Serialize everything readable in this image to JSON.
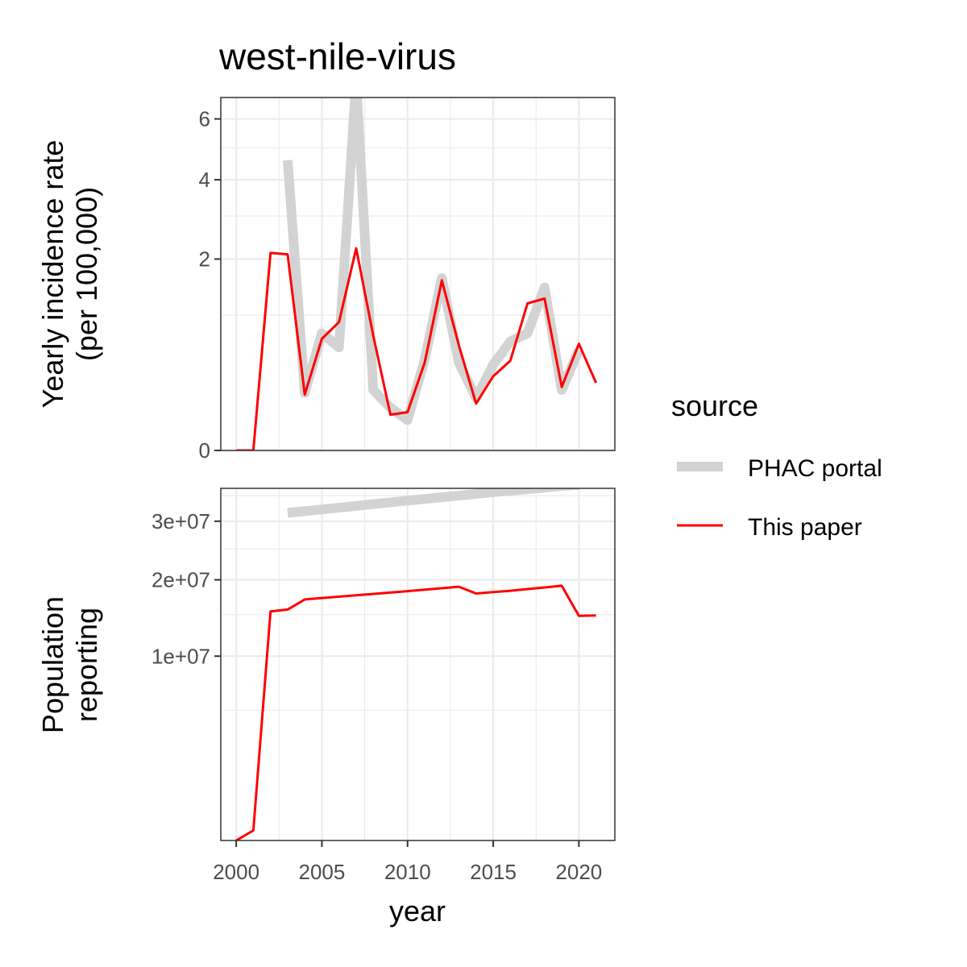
{
  "title": "west-nile-virus",
  "colors": {
    "phac": "#d3d3d3",
    "paper": "#ff0000",
    "grid": "#ebebeb",
    "panel_border": "#333333"
  },
  "legend": {
    "title": "source",
    "items": [
      {
        "label": "PHAC portal",
        "color": "#d3d3d3"
      },
      {
        "label": "This paper",
        "color": "#ff0000"
      }
    ]
  },
  "chart_data": [
    {
      "type": "line",
      "panel": "top",
      "ylabel_line1": "Yearly incidence rate",
      "ylabel_line2": "(per 100,000)",
      "xlabel": "",
      "y_scale": "sqrt",
      "ylim": [
        0,
        6.8
      ],
      "yticks": [
        0,
        2,
        4,
        6
      ],
      "xlim": [
        1999.1,
        2022.1
      ],
      "series": [
        {
          "name": "PHAC portal",
          "x": [
            2003,
            2004,
            2005,
            2006,
            2007,
            2008,
            2009,
            2010,
            2011,
            2012,
            2013,
            2014,
            2015,
            2016,
            2017,
            2018,
            2019,
            2020
          ],
          "y": [
            4.6,
            0.18,
            0.75,
            0.58,
            7.5,
            0.2,
            0.1,
            0.05,
            0.45,
            1.62,
            0.42,
            0.15,
            0.4,
            0.65,
            0.75,
            1.45,
            0.2,
            0.55
          ]
        },
        {
          "name": "This paper",
          "x": [
            2000,
            2001,
            2002,
            2003,
            2004,
            2005,
            2006,
            2007,
            2008,
            2009,
            2010,
            2011,
            2012,
            2013,
            2014,
            2015,
            2016,
            2017,
            2018,
            2019,
            2020,
            2021
          ],
          "y": [
            0,
            0,
            2.13,
            2.1,
            0.17,
            0.68,
            0.9,
            2.23,
            0.72,
            0.07,
            0.08,
            0.42,
            1.58,
            0.6,
            0.12,
            0.3,
            0.44,
            1.18,
            1.26,
            0.22,
            0.62,
            0.25
          ]
        }
      ]
    },
    {
      "type": "line",
      "panel": "bottom",
      "ylabel_line1": "Population",
      "ylabel_line2": "reporting",
      "xlabel": "year",
      "y_scale": "sqrt",
      "ylim": [
        0,
        36500000
      ],
      "yticks": [
        10000000,
        20000000,
        30000000
      ],
      "ytick_labels": [
        "1e+07",
        "2e+07",
        "3e+07"
      ],
      "xticks": [
        2000,
        2005,
        2010,
        2015,
        2020
      ],
      "xlim": [
        1999.1,
        2022.1
      ],
      "series": [
        {
          "name": "PHAC portal",
          "x": [
            2003,
            2005,
            2010,
            2015,
            2016,
            2017,
            2018,
            2019,
            2020
          ],
          "y": [
            31600000,
            32250000,
            34000000,
            35700000,
            36000000,
            36300000,
            36650000,
            37000000,
            37200000
          ]
        },
        {
          "name": "This paper",
          "x": [
            2000,
            2001,
            2002,
            2003,
            2004,
            2005,
            2010,
            2013,
            2014,
            2015,
            2016,
            2017,
            2018,
            2019,
            2020,
            2021
          ],
          "y": [
            0,
            30000,
            15450000,
            15700000,
            17100000,
            17300000,
            18300000,
            18950000,
            17950000,
            18150000,
            18350000,
            18600000,
            18850000,
            19100000,
            14850000,
            14900000
          ]
        }
      ]
    }
  ]
}
